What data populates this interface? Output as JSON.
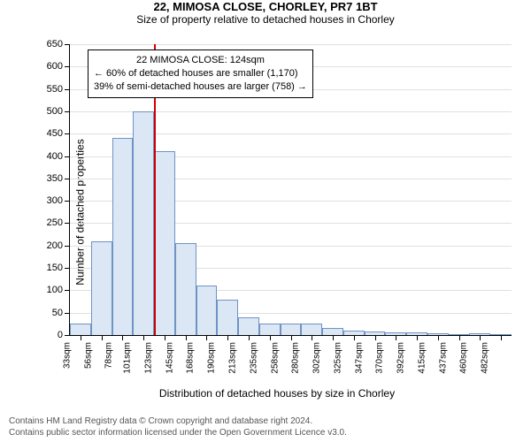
{
  "title": "22, MIMOSA CLOSE, CHORLEY, PR7 1BT",
  "subtitle": "Size of property relative to detached houses in Chorley",
  "title_fontsize": 13,
  "subtitle_fontsize": 12,
  "ylabel": "Number of detached properties",
  "xlabel": "Distribution of detached houses by size in Chorley",
  "chart": {
    "type": "histogram",
    "background_color": "#ffffff",
    "grid_color": "#e0e0e0",
    "axis_color": "#000000",
    "bar_fill": "#dbe7f5",
    "bar_border": "#6f93c4",
    "bar_width_ratio": 1.0,
    "ylim": [
      0,
      650
    ],
    "ytick_step": 50,
    "xticks": [
      "33sqm",
      "56sqm",
      "78sqm",
      "101sqm",
      "123sqm",
      "145sqm",
      "168sqm",
      "190sqm",
      "213sqm",
      "235sqm",
      "258sqm",
      "280sqm",
      "302sqm",
      "325sqm",
      "347sqm",
      "370sqm",
      "392sqm",
      "415sqm",
      "437sqm",
      "460sqm",
      "482sqm"
    ],
    "values": [
      25,
      210,
      440,
      500,
      410,
      205,
      110,
      80,
      40,
      25,
      25,
      25,
      15,
      10,
      8,
      6,
      5,
      3,
      0,
      3,
      2
    ],
    "xtick_fontsize": 10,
    "ytick_fontsize": 11
  },
  "marker": {
    "bin_index": 4,
    "color": "#cc0000"
  },
  "callout": {
    "line1": "22 MIMOSA CLOSE: 124sqm",
    "line2": "← 60% of detached houses are smaller (1,170)",
    "line3": "39% of semi-detached houses are larger (758) →",
    "border_color": "#000000",
    "background": "#ffffff",
    "fontsize": 11
  },
  "credits": {
    "line1": "Contains HM Land Registry data © Crown copyright and database right 2024.",
    "line2": "Contains public sector information licensed under the Open Government Licence v3.0.",
    "color": "#555555",
    "fontsize": 10
  }
}
